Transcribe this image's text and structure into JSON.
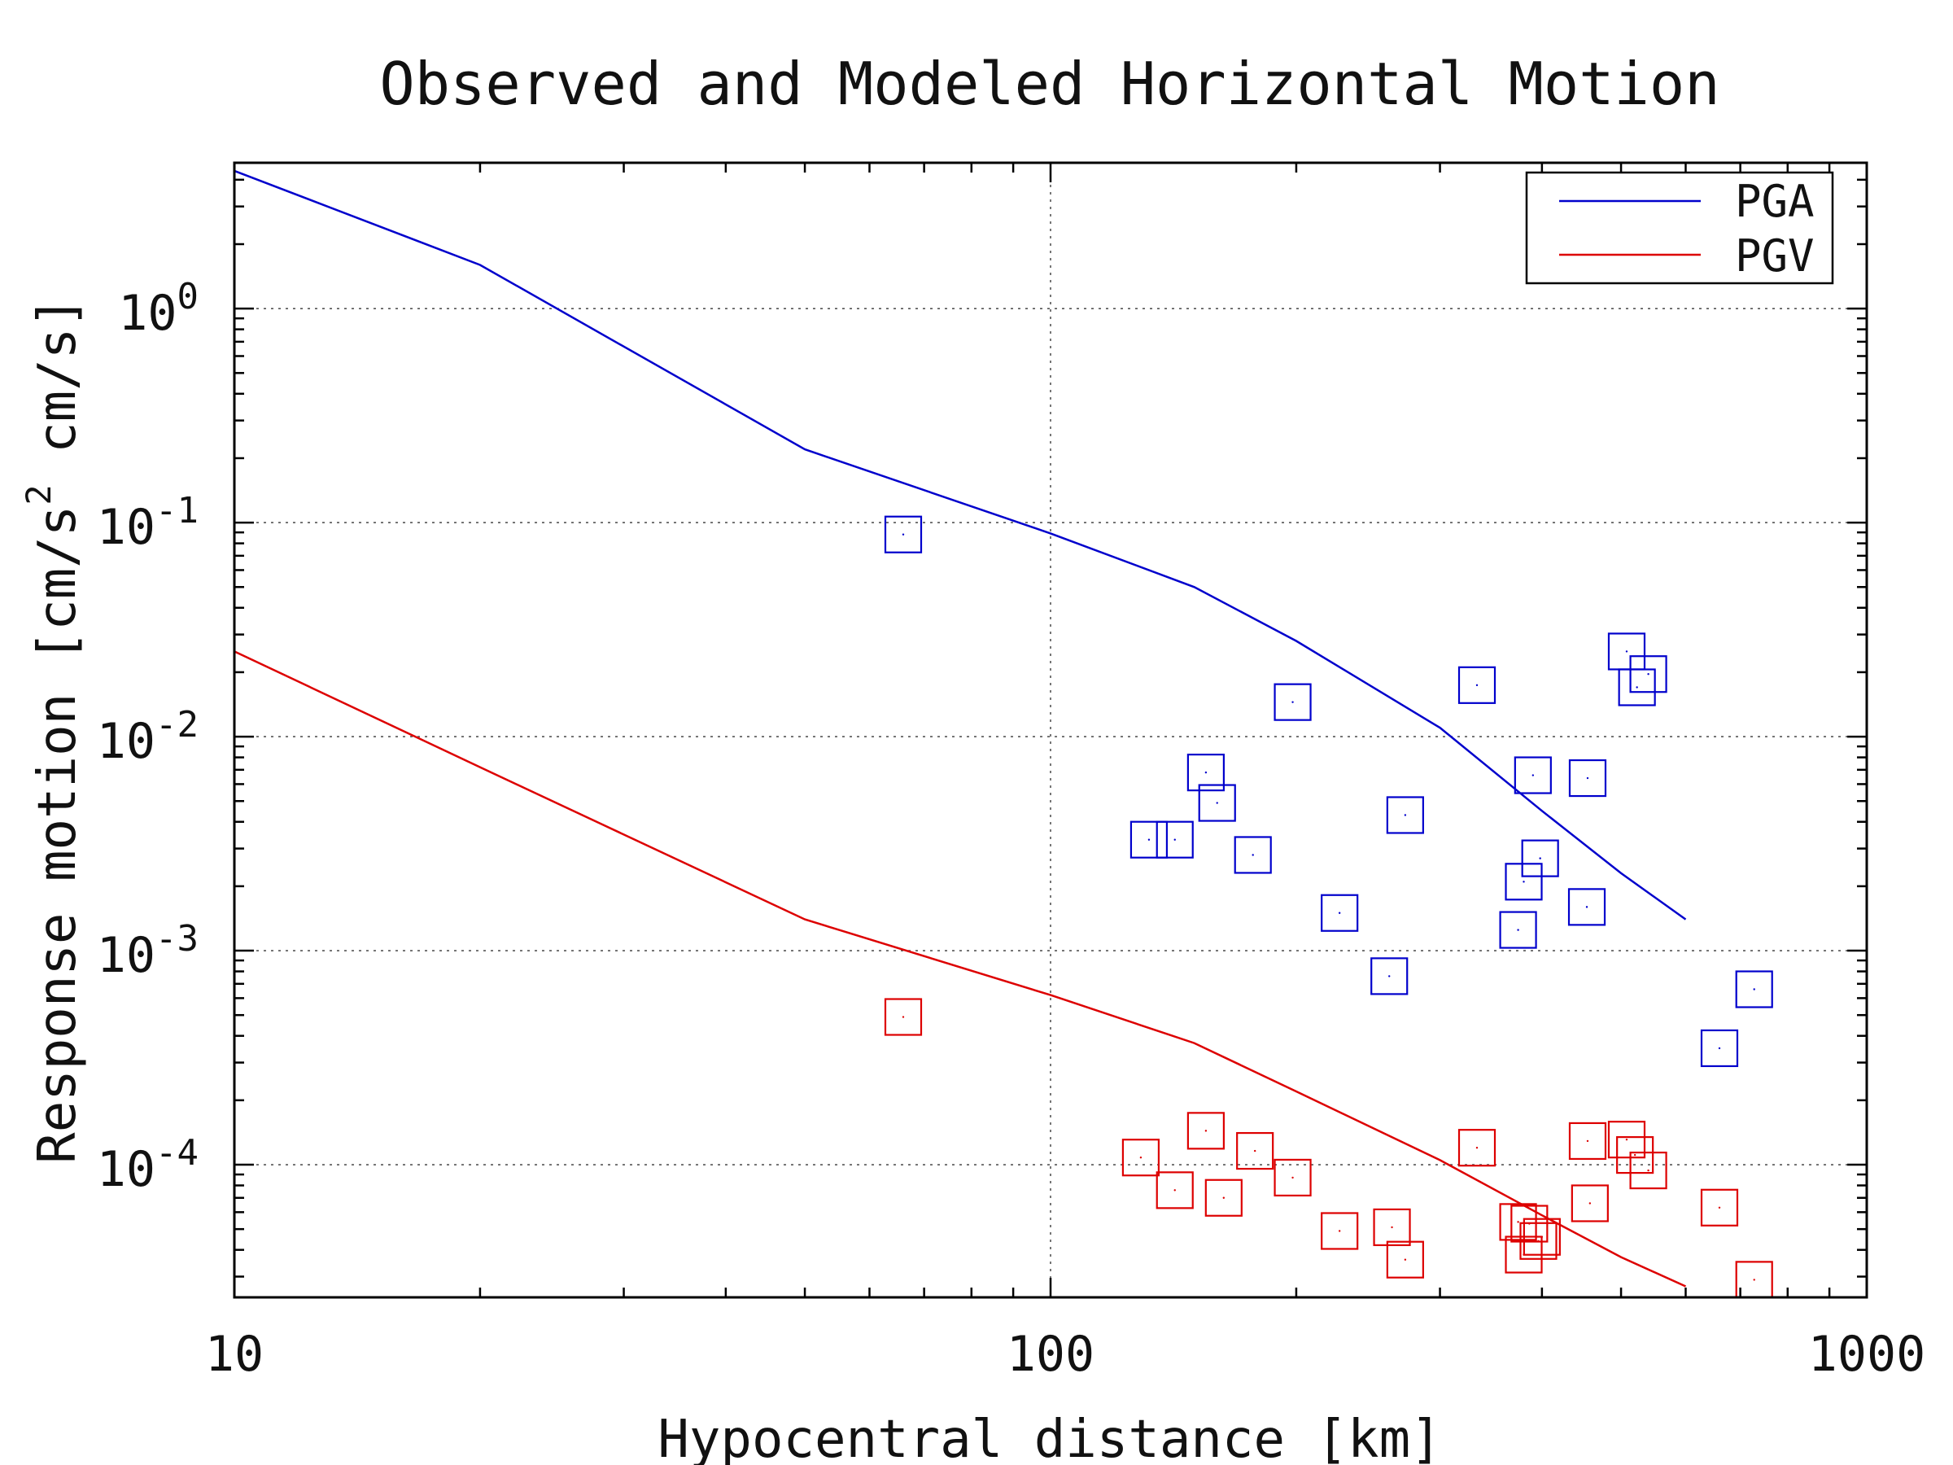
{
  "chart_data": {
    "type": "scatter",
    "title": "Observed and Modeled Horizontal Motion",
    "xlabel": "Hypocentral distance [km]",
    "ylabel": "Response motion  [cm/s^2  cm/s]",
    "ylabel_parts": {
      "a": "Response motion  [cm/s",
      "sup": "2",
      "b": "  cm/s]"
    },
    "x_scale": "log",
    "y_scale": "log",
    "xlim": [
      10,
      1000
    ],
    "ylim": [
      2.4e-05,
      4.8
    ],
    "x_ticks": [
      {
        "value": 10,
        "label": "10"
      },
      {
        "value": 100,
        "label": "100"
      },
      {
        "value": 1000,
        "label": "1000"
      }
    ],
    "y_ticks": [
      {
        "value": 1,
        "base": "10",
        "exp": "0"
      },
      {
        "value": 0.1,
        "base": "10",
        "exp": "-1"
      },
      {
        "value": 0.01,
        "base": "10",
        "exp": "-2"
      },
      {
        "value": 0.001,
        "base": "10",
        "exp": "-3"
      },
      {
        "value": 0.0001,
        "base": "10",
        "exp": "-4"
      }
    ],
    "grid": true,
    "legend_position": "top-right",
    "series": [
      {
        "name": "PGA",
        "kind": "line",
        "color": "#0000cc",
        "points": [
          [
            10,
            4.4
          ],
          [
            20,
            1.6
          ],
          [
            50,
            0.22
          ],
          [
            100,
            0.089
          ],
          [
            150,
            0.05
          ],
          [
            200,
            0.028
          ],
          [
            300,
            0.011
          ],
          [
            400,
            0.0045
          ],
          [
            500,
            0.0023
          ],
          [
            600,
            0.0014
          ]
        ]
      },
      {
        "name": "PGV",
        "kind": "line",
        "color": "#dd0000",
        "points": [
          [
            10,
            0.025
          ],
          [
            20,
            0.0072
          ],
          [
            50,
            0.0014
          ],
          [
            100,
            0.00062
          ],
          [
            150,
            0.00037
          ],
          [
            200,
            0.00022
          ],
          [
            300,
            0.000105
          ],
          [
            400,
            5.8e-05
          ],
          [
            500,
            3.7e-05
          ],
          [
            600,
            2.7e-05
          ]
        ]
      },
      {
        "kind": "markers",
        "color": "#0000cc",
        "points": [
          [
            66,
            0.088
          ],
          [
            132,
            0.0033
          ],
          [
            142,
            0.0033
          ],
          [
            155,
            0.0068
          ],
          [
            160,
            0.0049
          ],
          [
            177,
            0.0028
          ],
          [
            198,
            0.0145
          ],
          [
            226,
            0.0015
          ],
          [
            260,
            0.00076
          ],
          [
            272,
            0.0043
          ],
          [
            333,
            0.0174
          ],
          [
            374,
            0.00125
          ],
          [
            380,
            0.0021
          ],
          [
            390,
            0.0066
          ],
          [
            398,
            0.0027
          ],
          [
            454,
            0.0016
          ],
          [
            455,
            0.0064
          ],
          [
            508,
            0.025
          ],
          [
            523,
            0.017
          ],
          [
            540,
            0.0196
          ],
          [
            660,
            0.00035
          ],
          [
            728,
            0.00066
          ]
        ]
      },
      {
        "kind": "markers",
        "color": "#dd0000",
        "points": [
          [
            66,
            0.00049
          ],
          [
            129,
            0.000108
          ],
          [
            142,
            7.6e-05
          ],
          [
            155,
            0.000144
          ],
          [
            163,
            7e-05
          ],
          [
            178,
            0.000116
          ],
          [
            198,
            8.7e-05
          ],
          [
            226,
            4.9e-05
          ],
          [
            262,
            5.1e-05
          ],
          [
            272,
            3.6e-05
          ],
          [
            333,
            0.00012
          ],
          [
            374,
            5.4e-05
          ],
          [
            380,
            3.8e-05
          ],
          [
            386,
            5.3e-05
          ],
          [
            396,
            4.4e-05
          ],
          [
            400,
            4.6e-05
          ],
          [
            455,
            0.000129
          ],
          [
            458,
            6.6e-05
          ],
          [
            508,
            0.000131
          ],
          [
            520,
            0.000111
          ],
          [
            540,
            9.4e-05
          ],
          [
            660,
            6.3e-05
          ],
          [
            728,
            2.9e-05
          ]
        ]
      }
    ]
  }
}
